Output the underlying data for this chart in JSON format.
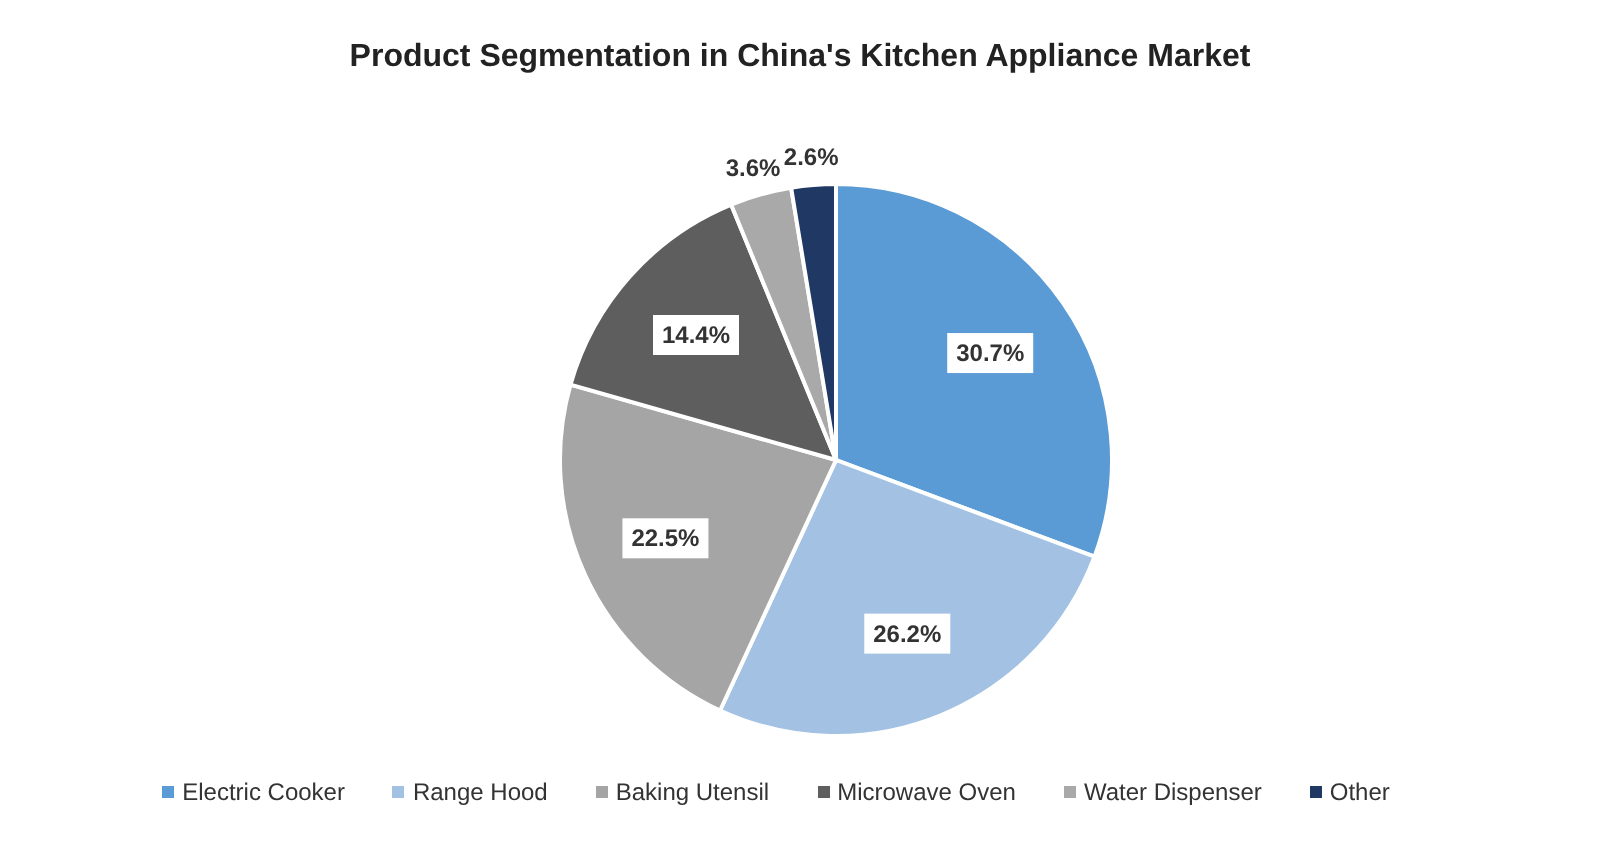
{
  "chart_data": {
    "type": "pie",
    "title": "Product Segmentation in China's Kitchen Appliance Market",
    "categories": [
      "Electric Cooker",
      "Range Hood",
      "Baking Utensil",
      "Microwave Oven",
      "Water Dispenser",
      "Other"
    ],
    "values": [
      30.7,
      26.2,
      22.5,
      14.4,
      3.6,
      2.6
    ],
    "value_labels": [
      "30.7%",
      "26.2%",
      "22.5%",
      "14.4%",
      "3.6%",
      "2.6%"
    ],
    "colors": [
      "#5b9bd5",
      "#a3c2e3",
      "#a5a5a5",
      "#5e5e5e",
      "#a9a9a9",
      "#1f3864"
    ],
    "legend": "bottom"
  }
}
